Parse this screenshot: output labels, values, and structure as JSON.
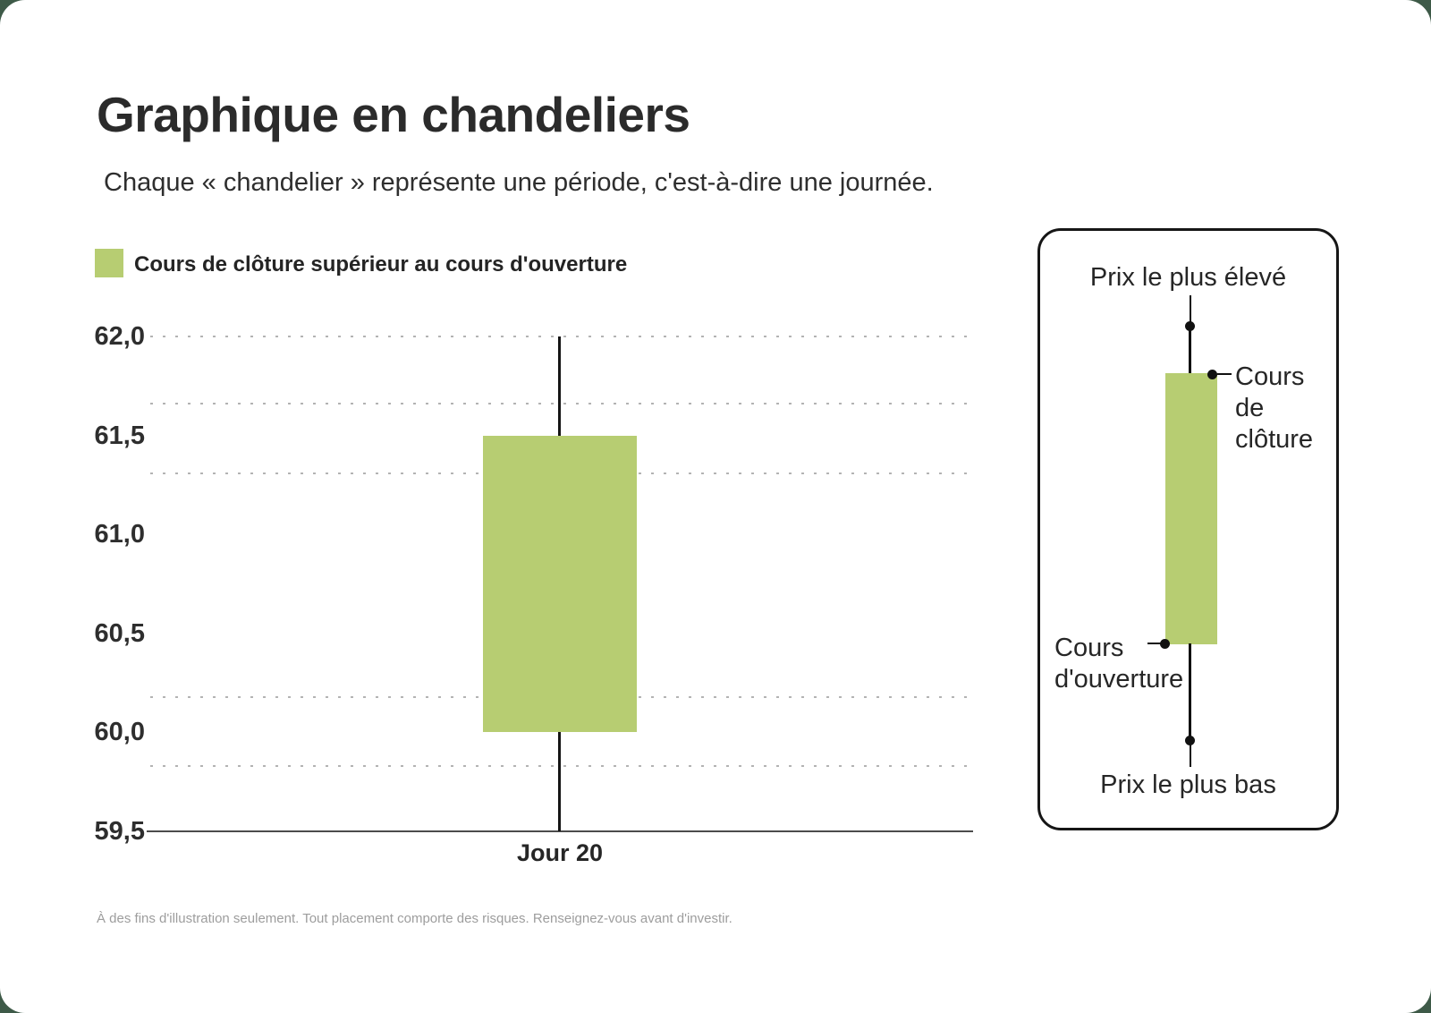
{
  "page": {
    "background_color": "#3e5a48",
    "card_color": "#ffffff"
  },
  "header": {
    "title": "Graphique en chandeliers",
    "subtitle": "Chaque « chandelier » représente une période, c'est-à-dire une journée."
  },
  "legend": {
    "swatch_color": "#b7cd72",
    "label": "Cours de clôture supérieur au cours d'ouverture"
  },
  "chart_data": {
    "type": "candlestick",
    "title": "Graphique en chandeliers",
    "categories": [
      "Jour 20"
    ],
    "series": [
      {
        "name": "Jour 20",
        "open": 60.0,
        "close": 61.5,
        "high": 62.0,
        "low": 59.5,
        "direction": "hausse",
        "color": "#b7cd72"
      }
    ],
    "xlabel": "",
    "ylabel": "",
    "ylim": [
      59.5,
      62.0
    ],
    "y_ticks": [
      62.0,
      61.5,
      61.0,
      60.5,
      60.0,
      59.5
    ],
    "y_tick_labels": [
      "62,0",
      "61,5",
      "61,0",
      "60,5",
      "60,0",
      "59,5"
    ],
    "x_tick_labels": [
      "Jour 20"
    ],
    "gridlines": {
      "style": "dotted",
      "color": "#b3b3b3",
      "values": [
        62.0,
        61.66,
        61.31,
        60.18,
        59.83
      ]
    },
    "axis_color": "#4c4c4c",
    "wick_color": "#151515",
    "legend_position": "top-left",
    "legend_entries": [
      "Cours de clôture supérieur au cours d'ouverture"
    ]
  },
  "diagram": {
    "high_label": "Prix le plus élevé",
    "close_label_lines": [
      "Cours",
      "de",
      "clôture"
    ],
    "open_label_lines": [
      "Cours",
      "d'ouverture"
    ],
    "low_label": "Prix le plus bas",
    "body_color": "#b7cd72"
  },
  "footer": {
    "disclaimer": "À des fins d'illustration seulement. Tout placement comporte des risques. Renseignez-vous avant d'investir."
  }
}
